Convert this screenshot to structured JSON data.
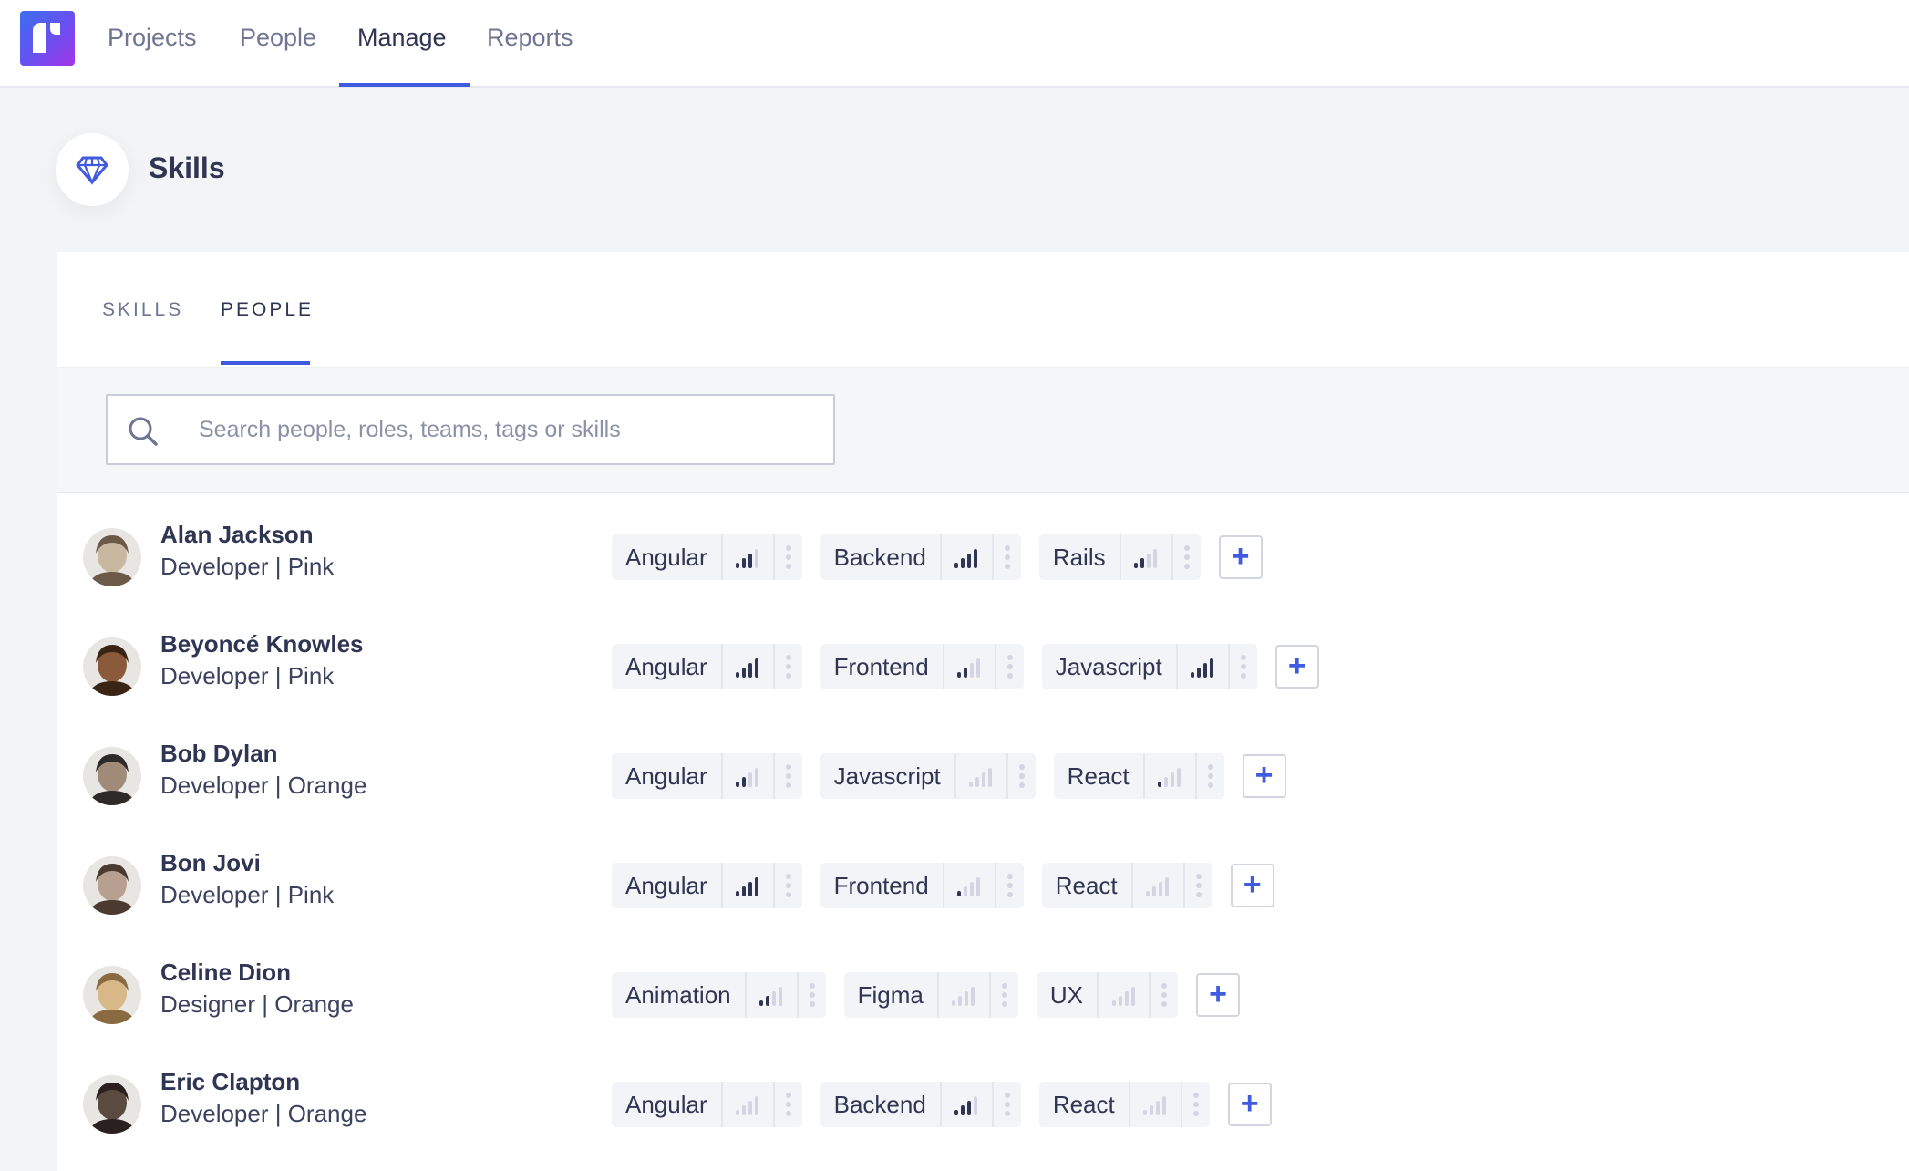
{
  "colors": {
    "accent": "#3f5be0",
    "level_on": "#2f3552",
    "level_off": "#d3d6e2"
  },
  "nav": {
    "items": [
      {
        "label": "Projects",
        "active": false
      },
      {
        "label": "People",
        "active": false
      },
      {
        "label": "Manage",
        "active": true
      },
      {
        "label": "Reports",
        "active": false
      }
    ]
  },
  "header": {
    "title": "Skills",
    "icon": "diamond-icon"
  },
  "tabs": [
    {
      "label": "SKILLS",
      "active": false
    },
    {
      "label": "PEOPLE",
      "active": true
    }
  ],
  "search": {
    "placeholder": "Search people, roles, teams, tags or skills",
    "value": ""
  },
  "max_level": 4,
  "people": [
    {
      "name": "Alan Jackson",
      "role": "Developer | Pink",
      "skills": [
        {
          "name": "Angular",
          "level": 3
        },
        {
          "name": "Backend",
          "level": 4
        },
        {
          "name": "Rails",
          "level": 2
        }
      ]
    },
    {
      "name": "Beyoncé Knowles",
      "role": "Developer | Pink",
      "skills": [
        {
          "name": "Angular",
          "level": 4
        },
        {
          "name": "Frontend",
          "level": 2
        },
        {
          "name": "Javascript",
          "level": 4
        }
      ]
    },
    {
      "name": "Bob Dylan",
      "role": "Developer | Orange",
      "skills": [
        {
          "name": "Angular",
          "level": 2
        },
        {
          "name": "Javascript",
          "level": 0
        },
        {
          "name": "React",
          "level": 1
        }
      ]
    },
    {
      "name": "Bon Jovi",
      "role": "Developer | Pink",
      "skills": [
        {
          "name": "Angular",
          "level": 4
        },
        {
          "name": "Frontend",
          "level": 1
        },
        {
          "name": "React",
          "level": 0
        }
      ]
    },
    {
      "name": "Celine Dion",
      "role": "Designer | Orange",
      "skills": [
        {
          "name": "Animation",
          "level": 2
        },
        {
          "name": "Figma",
          "level": 0
        },
        {
          "name": "UX",
          "level": 0
        }
      ]
    },
    {
      "name": "Eric Clapton",
      "role": "Developer | Orange",
      "skills": [
        {
          "name": "Angular",
          "level": 0
        },
        {
          "name": "Backend",
          "level": 3
        },
        {
          "name": "React",
          "level": 0
        }
      ]
    }
  ],
  "add_label": "+"
}
